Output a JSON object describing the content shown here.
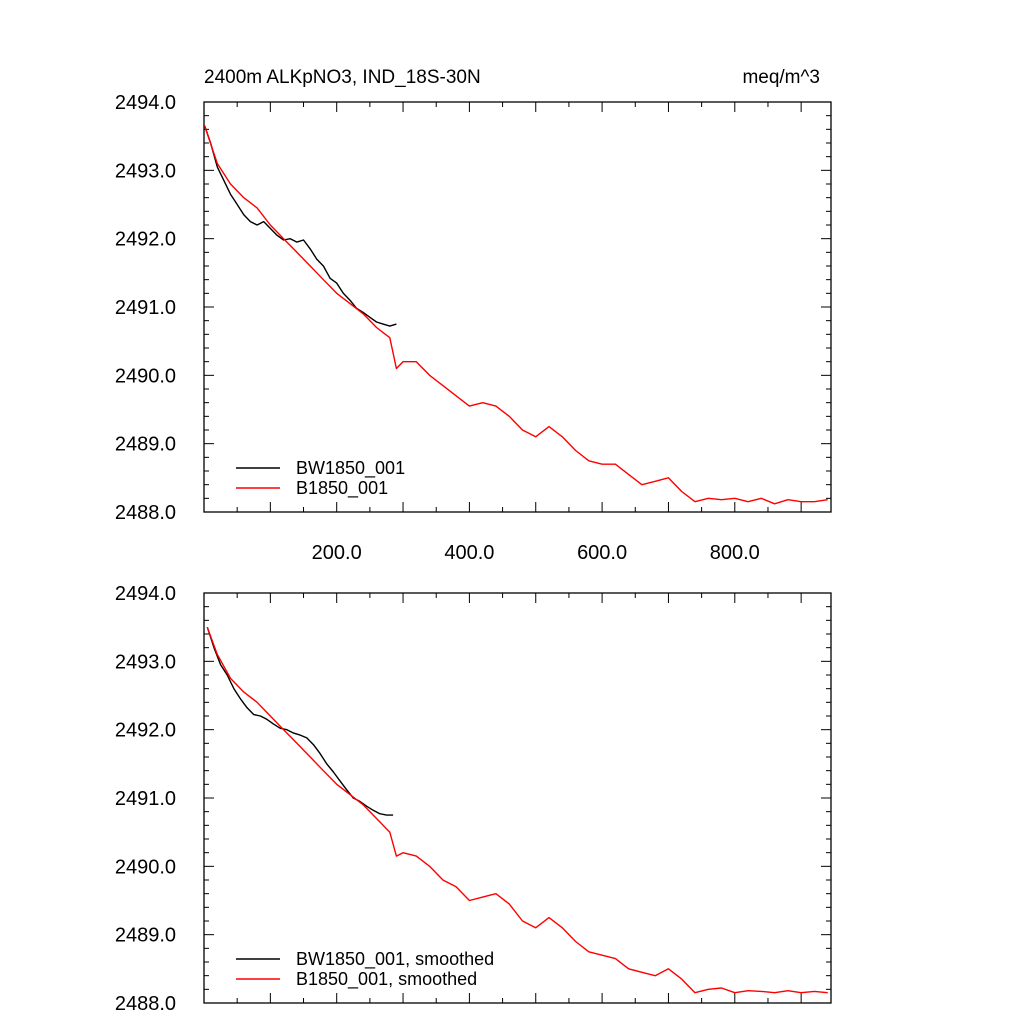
{
  "header": {
    "title": "2400m ALKpNO3, IND_18S-30N",
    "units": "meq/m^3"
  },
  "chart_data": [
    {
      "type": "line",
      "title": "2400m ALKpNO3, IND_18S-30N",
      "units": "meq/m^3",
      "xlim": [
        0,
        945
      ],
      "ylim": [
        2488.0,
        2494.0
      ],
      "x_ticks": [
        200,
        400,
        600,
        800
      ],
      "x_tick_labels": [
        "200.0",
        "400.0",
        "600.0",
        "800.0"
      ],
      "y_ticks": [
        2488,
        2489,
        2490,
        2491,
        2492,
        2493,
        2494
      ],
      "y_tick_labels": [
        "2488.0",
        "2489.0",
        "2490.0",
        "2491.0",
        "2492.0",
        "2493.0",
        "2494.0"
      ],
      "legend_position": "bottom-left",
      "series": [
        {
          "name": "BW1850_001",
          "color": "#000000",
          "x": [
            1,
            10,
            20,
            30,
            40,
            50,
            60,
            70,
            80,
            90,
            100,
            110,
            120,
            130,
            140,
            150,
            160,
            170,
            180,
            190,
            200,
            210,
            220,
            230,
            240,
            250,
            260,
            270,
            280,
            290
          ],
          "y": [
            2493.65,
            2493.4,
            2493.05,
            2492.85,
            2492.65,
            2492.5,
            2492.35,
            2492.25,
            2492.2,
            2492.25,
            2492.15,
            2492.05,
            2491.98,
            2492.0,
            2491.95,
            2491.98,
            2491.85,
            2491.7,
            2491.6,
            2491.42,
            2491.35,
            2491.2,
            2491.1,
            2490.98,
            2490.92,
            2490.85,
            2490.78,
            2490.75,
            2490.72,
            2490.75
          ]
        },
        {
          "name": "B1850_001",
          "color": "#ff0000",
          "x": [
            1,
            20,
            40,
            60,
            80,
            100,
            120,
            140,
            160,
            180,
            200,
            220,
            240,
            260,
            280,
            290,
            300,
            320,
            340,
            360,
            380,
            400,
            420,
            440,
            460,
            480,
            500,
            520,
            540,
            560,
            580,
            600,
            620,
            640,
            660,
            680,
            700,
            720,
            740,
            760,
            780,
            800,
            820,
            840,
            860,
            880,
            900,
            920,
            940
          ],
          "y": [
            2493.65,
            2493.1,
            2492.8,
            2492.6,
            2492.45,
            2492.2,
            2492.0,
            2491.8,
            2491.6,
            2491.4,
            2491.2,
            2491.05,
            2490.9,
            2490.7,
            2490.55,
            2490.1,
            2490.2,
            2490.2,
            2490.0,
            2489.85,
            2489.7,
            2489.55,
            2489.6,
            2489.55,
            2489.4,
            2489.2,
            2489.1,
            2489.25,
            2489.1,
            2488.9,
            2488.75,
            2488.7,
            2488.7,
            2488.55,
            2488.4,
            2488.45,
            2488.5,
            2488.3,
            2488.15,
            2488.2,
            2488.18,
            2488.2,
            2488.15,
            2488.2,
            2488.12,
            2488.18,
            2488.15,
            2488.15,
            2488.18
          ]
        }
      ]
    },
    {
      "type": "line",
      "xlim": [
        0,
        945
      ],
      "ylim": [
        2488.0,
        2494.0
      ],
      "x_ticks": [
        200,
        400,
        600,
        800
      ],
      "y_ticks": [
        2488,
        2489,
        2490,
        2491,
        2492,
        2493,
        2494
      ],
      "y_tick_labels": [
        "2488.0",
        "2489.0",
        "2490.0",
        "2491.0",
        "2492.0",
        "2493.0",
        "2494.0"
      ],
      "legend_position": "bottom-left",
      "series": [
        {
          "name": "BW1850_001, smoothed",
          "color": "#000000",
          "x": [
            5,
            15,
            25,
            35,
            45,
            55,
            65,
            75,
            85,
            95,
            105,
            115,
            125,
            135,
            145,
            155,
            165,
            175,
            185,
            195,
            205,
            215,
            225,
            235,
            245,
            255,
            265,
            275,
            285
          ],
          "y": [
            2493.5,
            2493.2,
            2492.95,
            2492.8,
            2492.6,
            2492.45,
            2492.32,
            2492.22,
            2492.2,
            2492.15,
            2492.08,
            2492.02,
            2492.0,
            2491.95,
            2491.92,
            2491.88,
            2491.78,
            2491.65,
            2491.5,
            2491.38,
            2491.25,
            2491.12,
            2491.0,
            2490.95,
            2490.88,
            2490.82,
            2490.77,
            2490.75,
            2490.75
          ]
        },
        {
          "name": "B1850_001, smoothed",
          "color": "#ff0000",
          "x": [
            5,
            20,
            40,
            60,
            80,
            100,
            120,
            140,
            160,
            180,
            200,
            220,
            240,
            260,
            280,
            290,
            300,
            320,
            340,
            360,
            380,
            400,
            420,
            440,
            460,
            480,
            500,
            520,
            540,
            560,
            580,
            600,
            620,
            640,
            660,
            680,
            700,
            720,
            740,
            760,
            780,
            800,
            820,
            840,
            860,
            880,
            900,
            920,
            940
          ],
          "y": [
            2493.5,
            2493.1,
            2492.75,
            2492.55,
            2492.4,
            2492.2,
            2492.0,
            2491.8,
            2491.6,
            2491.4,
            2491.2,
            2491.05,
            2490.9,
            2490.7,
            2490.5,
            2490.15,
            2490.2,
            2490.15,
            2490.0,
            2489.8,
            2489.7,
            2489.5,
            2489.55,
            2489.6,
            2489.45,
            2489.2,
            2489.1,
            2489.25,
            2489.1,
            2488.9,
            2488.75,
            2488.7,
            2488.65,
            2488.5,
            2488.45,
            2488.4,
            2488.5,
            2488.35,
            2488.15,
            2488.2,
            2488.22,
            2488.15,
            2488.18,
            2488.17,
            2488.15,
            2488.18,
            2488.15,
            2488.17,
            2488.15
          ]
        }
      ]
    }
  ]
}
